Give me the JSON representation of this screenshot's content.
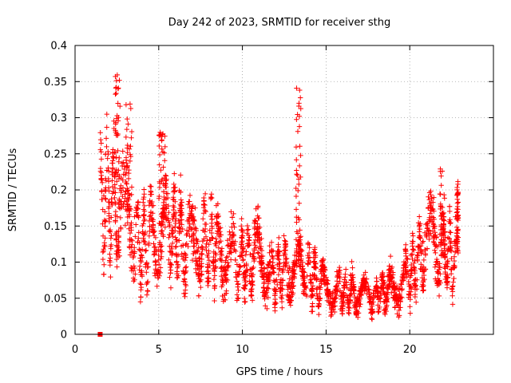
{
  "chart_data": {
    "type": "scatter",
    "title": "Day 242 of 2023, SRMTID for receiver sthg",
    "xlabel": "GPS time / hours",
    "ylabel": "SRMTID / TECUs",
    "xlim": [
      0,
      25
    ],
    "ylim": [
      0,
      0.4
    ],
    "x_ticks": [
      0,
      5,
      10,
      15,
      20
    ],
    "x_tick_labels": [
      "0",
      "5",
      "10",
      "15",
      "20"
    ],
    "y_ticks": [
      0,
      0.05,
      0.1,
      0.15,
      0.2,
      0.25,
      0.3,
      0.35,
      0.4
    ],
    "y_tick_labels": [
      "0",
      "0.05",
      "0.1",
      "0.15",
      "0.2",
      "0.25",
      "0.3",
      "0.35",
      "0.4"
    ],
    "grid": true,
    "marker": "+",
    "color": "#ff0000",
    "outlier_square": {
      "x": 1.5,
      "y": 0.0
    },
    "trend_profile": [
      [
        1.5,
        0.2
      ],
      [
        2.0,
        0.19
      ],
      [
        3.0,
        0.16
      ],
      [
        4.0,
        0.12
      ],
      [
        5.0,
        0.15
      ],
      [
        6.0,
        0.14
      ],
      [
        7.0,
        0.12
      ],
      [
        8.0,
        0.13
      ],
      [
        9.0,
        0.11
      ],
      [
        10.0,
        0.1
      ],
      [
        11.0,
        0.11
      ],
      [
        12.0,
        0.08
      ],
      [
        13.0,
        0.09
      ],
      [
        14.0,
        0.085
      ],
      [
        15.0,
        0.065
      ],
      [
        16.0,
        0.06
      ],
      [
        17.0,
        0.055
      ],
      [
        18.0,
        0.055
      ],
      [
        19.0,
        0.065
      ],
      [
        20.0,
        0.08
      ],
      [
        21.0,
        0.13
      ],
      [
        22.0,
        0.11
      ],
      [
        22.8,
        0.11
      ]
    ],
    "spike_groups": [
      {
        "x": [
          2.4,
          2.7
        ],
        "ymax": 0.36
      },
      {
        "x": [
          3.0,
          3.4
        ],
        "ymax": 0.32
      },
      {
        "x": [
          13.2,
          13.5
        ],
        "ymax": 0.36
      },
      {
        "x": [
          5.0,
          5.4
        ],
        "ymax": 0.28
      },
      {
        "x": [
          21.8,
          22.1
        ],
        "ymax": 0.23
      },
      {
        "x": [
          22.8,
          22.9
        ],
        "ymax": 0.22
      }
    ],
    "time_span_hours": [
      1.5,
      22.9
    ]
  }
}
